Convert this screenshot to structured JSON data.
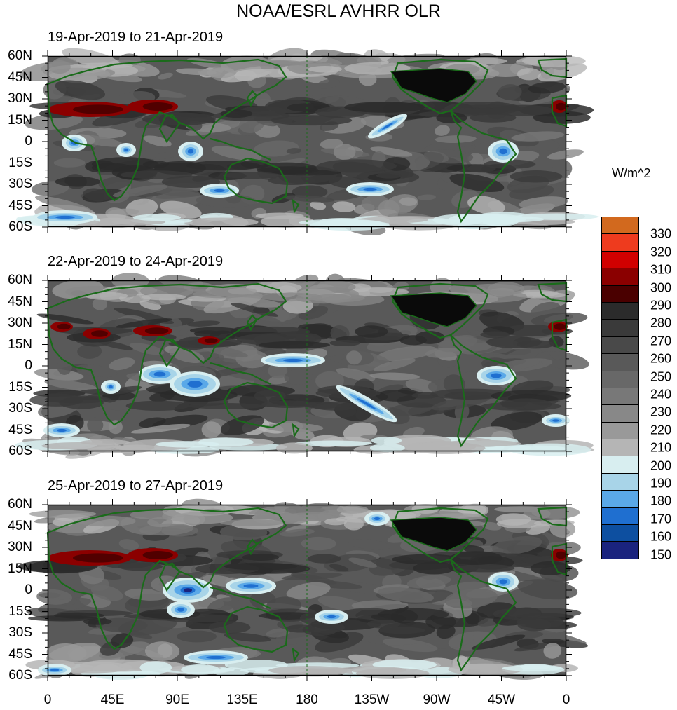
{
  "title": "NOAA/ESRL AVHRR OLR",
  "units": "W/m^2",
  "panels": [
    {
      "label": "19-Apr-2019 to 21-Apr-2019"
    },
    {
      "label": "22-Apr-2019 to 24-Apr-2019"
    },
    {
      "label": "25-Apr-2019 to 27-Apr-2019"
    }
  ],
  "lat_labels": [
    "60N",
    "45N",
    "30N",
    "15N",
    "0",
    "15S",
    "30S",
    "45S",
    "60S"
  ],
  "lon_labels": [
    "0",
    "45E",
    "90E",
    "135E",
    "180",
    "135W",
    "90W",
    "45W",
    "0"
  ],
  "colorbar": {
    "labels": [
      "330",
      "320",
      "310",
      "300",
      "290",
      "280",
      "270",
      "260",
      "250",
      "240",
      "230",
      "220",
      "210",
      "200",
      "190",
      "180",
      "170",
      "160",
      "150"
    ],
    "colors": [
      "#d2691e",
      "#ee3b1e",
      "#d10000",
      "#8b0000",
      "#4a0000",
      "#2b2b2b",
      "#3a3a3a",
      "#494949",
      "#595959",
      "#686868",
      "#787878",
      "#888888",
      "#999999",
      "#b5b5b5",
      "#d8eef0",
      "#a8d4e8",
      "#5aa8e8",
      "#1f6fd0",
      "#0d4fa0",
      "#1a237e"
    ]
  }
}
